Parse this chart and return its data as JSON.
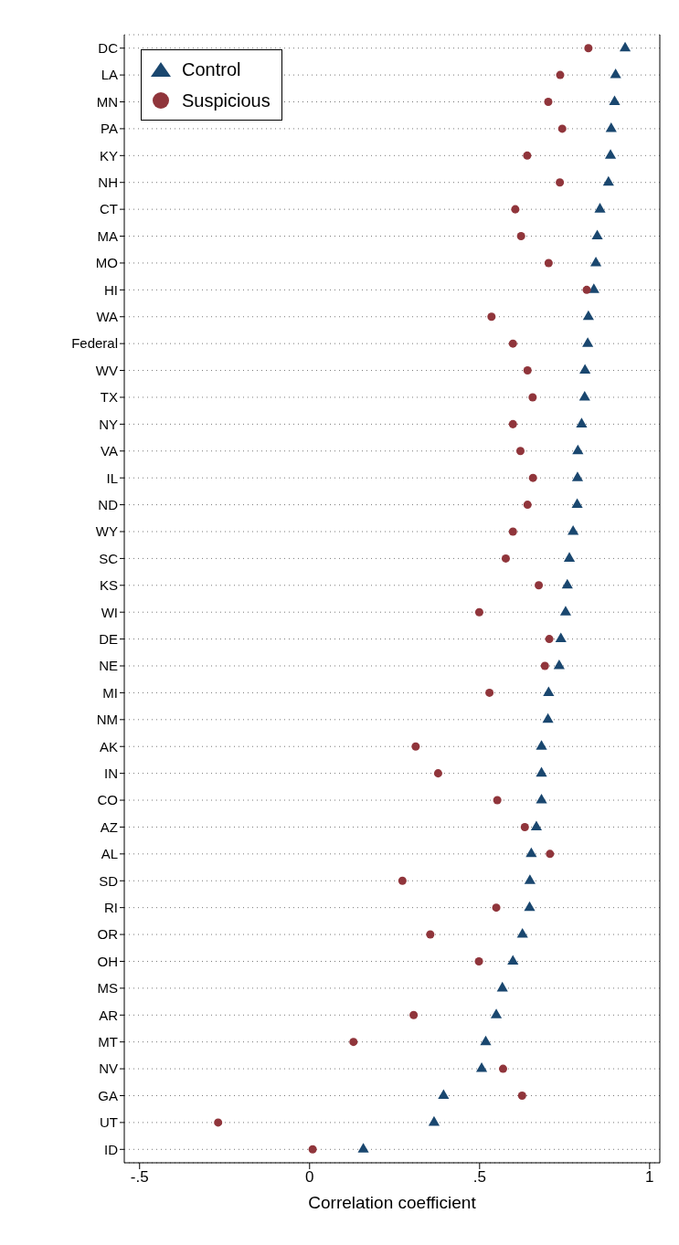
{
  "chart_data": {
    "type": "scatter",
    "orientation": "horizontal",
    "xlabel": "Correlation coefficient",
    "categories": [
      "DC",
      "LA",
      "MN",
      "PA",
      "KY",
      "NH",
      "CT",
      "MA",
      "MO",
      "HI",
      "WA",
      "Federal",
      "WV",
      "TX",
      "NY",
      "VA",
      "IL",
      "ND",
      "WY",
      "SC",
      "KS",
      "WI",
      "DE",
      "NE",
      "MI",
      "NM",
      "AK",
      "IN",
      "CO",
      "AZ",
      "AL",
      "SD",
      "RI",
      "OR",
      "OH",
      "MS",
      "AR",
      "MT",
      "NV",
      "GA",
      "UT",
      "ID"
    ],
    "series": [
      {
        "name": "Control",
        "color": "#1a476f",
        "marker": "triangle",
        "values": [
          0.928,
          0.9,
          0.897,
          0.887,
          0.885,
          0.879,
          0.854,
          0.846,
          0.842,
          0.836,
          0.82,
          0.818,
          0.81,
          0.809,
          0.8,
          0.789,
          0.788,
          0.787,
          0.775,
          0.764,
          0.758,
          0.753,
          0.739,
          0.734,
          0.703,
          0.701,
          0.682,
          0.682,
          0.682,
          0.667,
          0.652,
          0.648,
          0.647,
          0.626,
          0.598,
          0.567,
          0.549,
          0.518,
          0.506,
          0.394,
          0.366,
          0.158
        ]
      },
      {
        "name": "Suspicious",
        "color": "#90353b",
        "marker": "circle",
        "values": [
          0.82,
          0.737,
          0.702,
          0.743,
          0.64,
          0.736,
          0.605,
          0.622,
          0.703,
          0.815,
          0.535,
          0.598,
          0.641,
          0.656,
          0.598,
          0.62,
          0.657,
          0.641,
          0.598,
          0.577,
          0.674,
          0.499,
          0.705,
          0.692,
          0.529,
          null,
          0.312,
          0.378,
          0.552,
          0.633,
          0.707,
          0.273,
          0.549,
          0.355,
          0.498,
          null,
          0.306,
          0.129,
          0.569,
          0.625,
          -0.269,
          0.009
        ]
      }
    ],
    "xlim": [
      -0.545,
      1.03
    ],
    "xticks": [
      {
        "value": -0.5,
        "label": "-.5"
      },
      0,
      {
        "value": 0.5,
        "label": ".5"
      },
      1
    ],
    "grid": "y",
    "legend": "top left"
  }
}
